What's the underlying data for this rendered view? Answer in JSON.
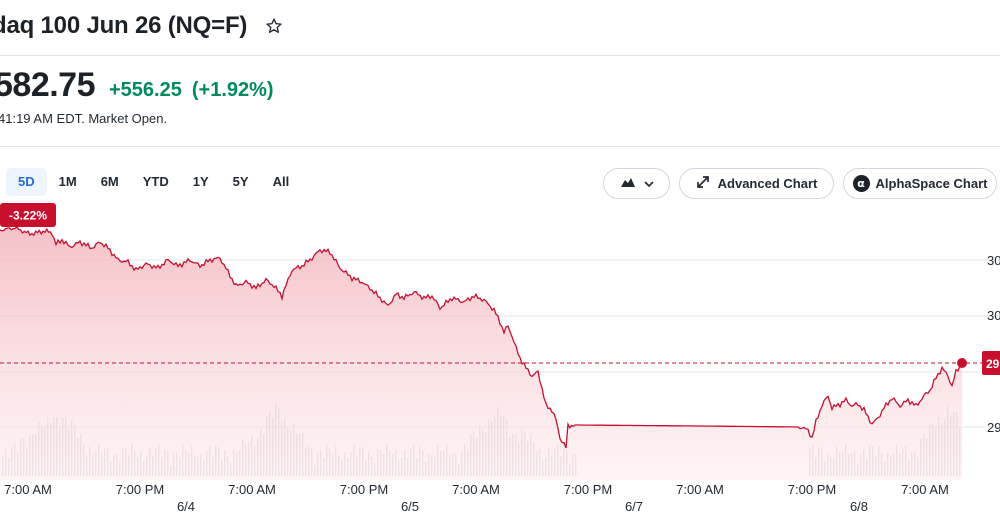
{
  "header": {
    "title": "daq 100 Jun 26 (NQ=F)",
    "star_icon": "star-outline-icon"
  },
  "quote": {
    "price": "582.75",
    "change": "+556.25",
    "change_pct": "(+1.92%)",
    "timestamp": "41:19 AM EDT. Market Open.",
    "change_color": "#008a5e"
  },
  "range_tabs": [
    {
      "label": "5D",
      "active": true
    },
    {
      "label": "1M",
      "active": false
    },
    {
      "label": "6M",
      "active": false
    },
    {
      "label": "YTD",
      "active": false
    },
    {
      "label": "1Y",
      "active": false
    },
    {
      "label": "5Y",
      "active": false
    },
    {
      "label": "All",
      "active": false
    }
  ],
  "toolbar": {
    "chart_type_icon": "mountain-chart-icon",
    "chart_type_chevron": "chevron-down-icon",
    "advanced_chart_label": "Advanced Chart",
    "advanced_chart_icon": "expand-arrows-icon",
    "alphaspace_chart_label": "AlphaSpace Chart",
    "alphaspace_logo": "α"
  },
  "chart_data": {
    "type": "area",
    "period_change_label": "-3.22%",
    "line_color": "#d0021b",
    "x_tick_labels": [
      "7:00 AM",
      "7:00 PM",
      "7:00 AM",
      "7:00 PM",
      "7:00 AM",
      "7:00 PM",
      "7:00 AM",
      "7:00 PM",
      "7:00 AM"
    ],
    "date_labels": [
      "6/4",
      "6/5",
      "6/7",
      "6/8"
    ],
    "y_tick_labels": [
      "30",
      "30",
      "29"
    ],
    "current_price_tag": "29",
    "y_gridlines": 4,
    "reference_line": "dashed"
  }
}
